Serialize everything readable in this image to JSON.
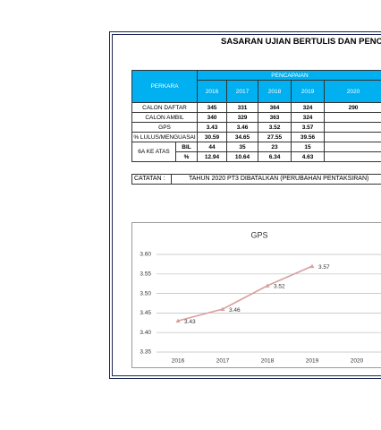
{
  "title": "SASARAN UJIAN BERTULIS DAN PENCAPA",
  "table": {
    "header": {
      "item": "PERKARA",
      "group": "PENCAPAIAN",
      "years": [
        "2016",
        "2017",
        "2018",
        "2019",
        "2020"
      ]
    },
    "rows": [
      {
        "label": "CALON DAFTAR",
        "values": [
          345,
          331,
          364,
          324,
          290
        ]
      },
      {
        "label": "CALON AMBIL",
        "values": [
          340,
          329,
          363,
          324
        ]
      },
      {
        "label": "GPS",
        "values": [
          3.43,
          3.46,
          3.52,
          3.57
        ]
      },
      {
        "label": "% LULUS/MENGUASAI",
        "values": [
          30.59,
          34.65,
          27.55,
          39.56
        ]
      },
      {
        "label": "6A KE ATAS",
        "parts": [
          {
            "label": "BIL",
            "values": [
              44,
              35,
              23,
              15
            ]
          },
          {
            "label": "%",
            "values": [
              12.94,
              10.64,
              6.34,
              4.63
            ]
          }
        ]
      }
    ]
  },
  "note": {
    "label": "CATATAN :",
    "text": "TAHUN 2020 PT3 DIBATALKAN (PERUBAHAN PENTAKSIRAN)"
  },
  "chart_data": {
    "type": "line",
    "title": "GPS",
    "categories": [
      "2016",
      "2017",
      "2018",
      "2019",
      "2020"
    ],
    "series": [
      {
        "name": "GPS",
        "color": "#d8a0a0",
        "values": [
          3.43,
          3.46,
          3.52,
          3.57,
          null
        ]
      }
    ],
    "ylim": [
      3.35,
      3.6
    ],
    "yticks": [
      3.35,
      {
        "value": 3.4,
        "label": "3.40"
      },
      3.45,
      {
        "value": 3.5,
        "label": "3.50"
      },
      3.55,
      {
        "value": 3.6,
        "label": "3.60"
      }
    ],
    "grid": true
  }
}
